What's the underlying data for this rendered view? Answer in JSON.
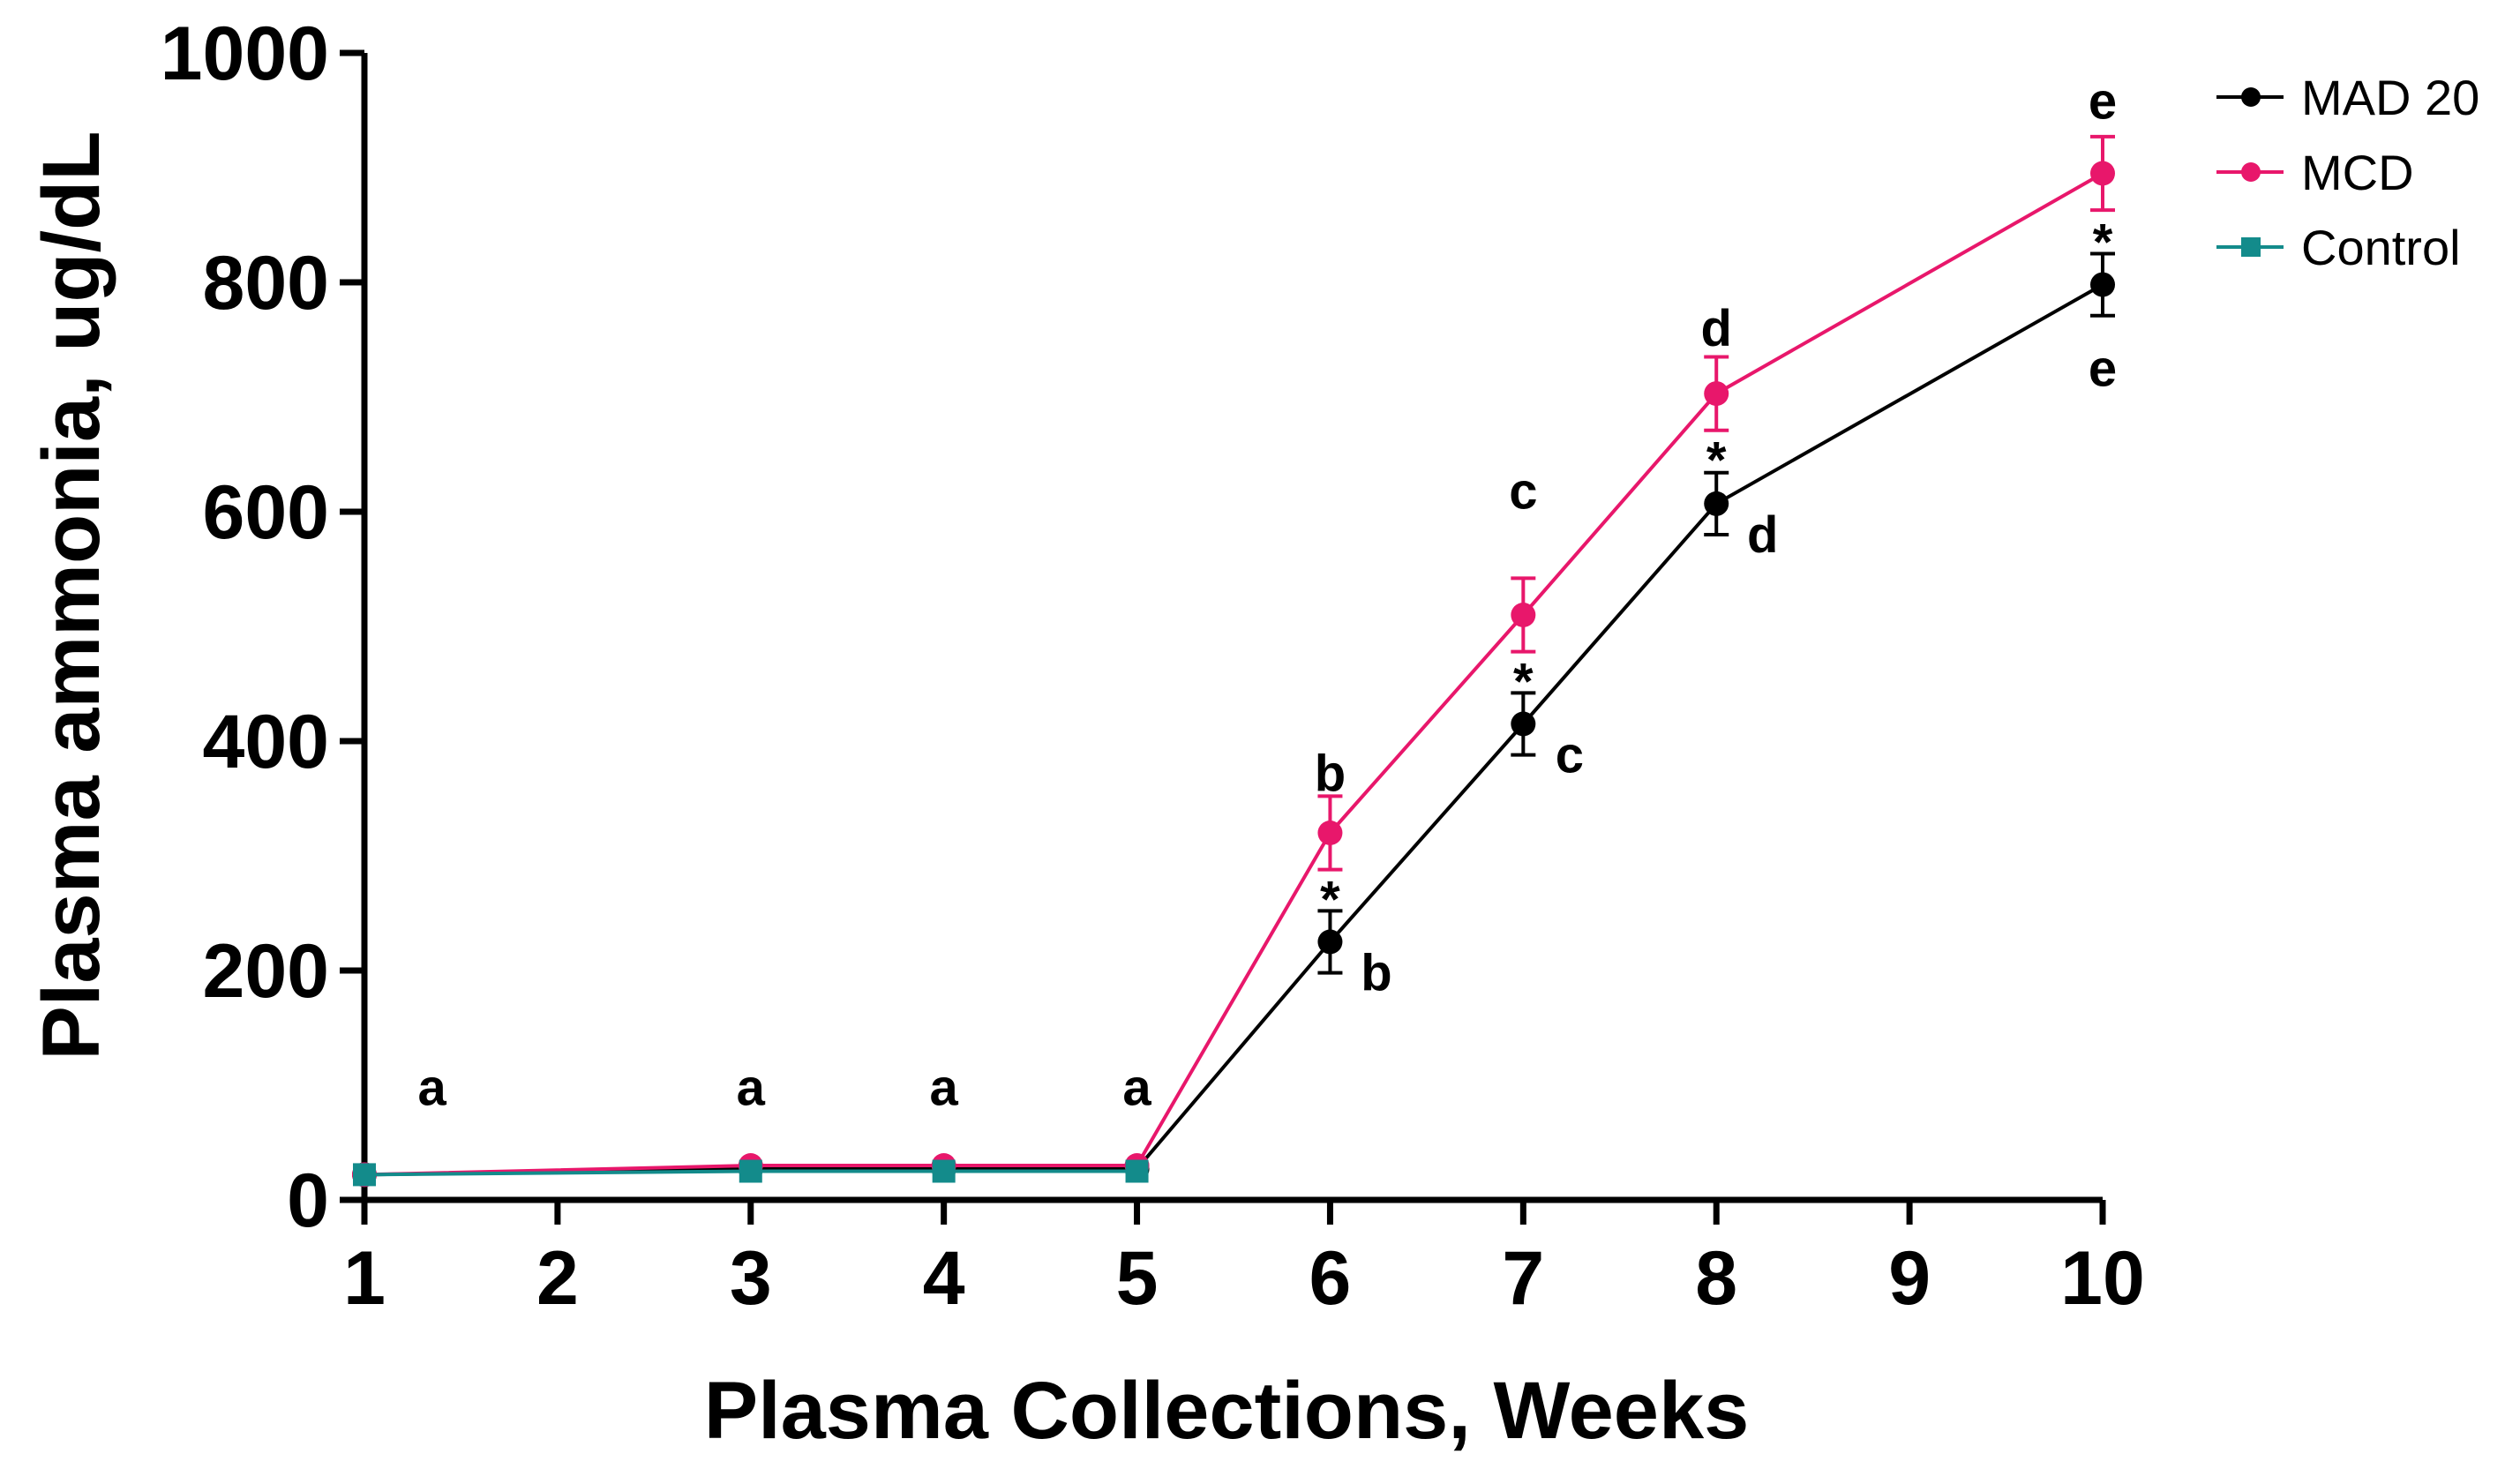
{
  "chart_data": {
    "type": "line",
    "xlabel": "Plasma Collections, Weeks",
    "ylabel": "Plasma ammonia, ug/dL",
    "xlim": [
      1,
      10
    ],
    "ylim": [
      0,
      1000
    ],
    "x_ticks": [
      1,
      2,
      3,
      4,
      5,
      6,
      7,
      8,
      9,
      10
    ],
    "y_ticks": [
      0,
      200,
      400,
      600,
      800,
      1000
    ],
    "grid": false,
    "legend_position": "top-right",
    "series": [
      {
        "name": "MAD 20",
        "color": "#000000",
        "marker": "circle",
        "x": [
          1,
          3,
          4,
          5,
          6,
          7,
          8,
          10
        ],
        "values": [
          22,
          27,
          27,
          27,
          225,
          415,
          607,
          798
        ],
        "error": [
          0,
          0,
          0,
          0,
          27,
          27,
          27,
          27
        ]
      },
      {
        "name": "MCD",
        "color": "#e8176b",
        "marker": "circle",
        "x": [
          1,
          3,
          4,
          5,
          6,
          7,
          8,
          10
        ],
        "values": [
          22,
          30,
          30,
          30,
          320,
          510,
          703,
          895
        ],
        "error": [
          0,
          0,
          0,
          0,
          32,
          32,
          32,
          32
        ]
      },
      {
        "name": "Control",
        "color": "#138b8b",
        "marker": "square",
        "x": [
          1,
          3,
          4,
          5
        ],
        "values": [
          22,
          25,
          25,
          25
        ],
        "error": [
          0,
          0,
          0,
          0
        ]
      }
    ],
    "annotations": [
      {
        "text": "a",
        "x": 1.35,
        "y": 98
      },
      {
        "text": "a",
        "x": 3,
        "y": 98
      },
      {
        "text": "a",
        "x": 4,
        "y": 98
      },
      {
        "text": "a",
        "x": 5,
        "y": 98
      },
      {
        "text": "b",
        "x": 6,
        "y": 372
      },
      {
        "text": "*",
        "x": 6,
        "y": 262
      },
      {
        "text": "b",
        "x": 6.24,
        "y": 198
      },
      {
        "text": "c",
        "x": 7,
        "y": 618
      },
      {
        "text": "*",
        "x": 7,
        "y": 452
      },
      {
        "text": "c",
        "x": 7.24,
        "y": 388
      },
      {
        "text": "d",
        "x": 8,
        "y": 760
      },
      {
        "text": "*",
        "x": 8,
        "y": 645
      },
      {
        "text": "d",
        "x": 8.24,
        "y": 580
      },
      {
        "text": "e",
        "x": 10,
        "y": 958
      },
      {
        "text": "*",
        "x": 10,
        "y": 835
      },
      {
        "text": "e",
        "x": 10,
        "y": 725
      }
    ]
  }
}
